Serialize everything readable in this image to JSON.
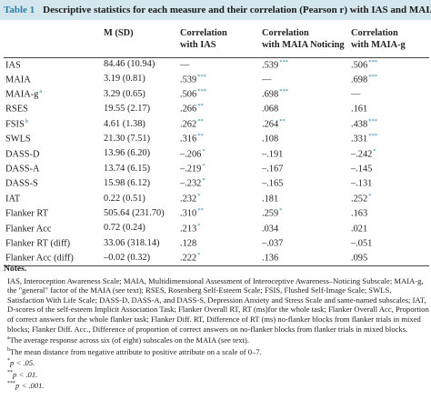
{
  "caption": {
    "label": "Table 1",
    "title": "Descriptive statistics for each measure and their correlation (Pearson r) with IAS and MAIA."
  },
  "headers": [
    "",
    "M (SD)",
    "Correlation with IAS",
    "Correlation with MAIA Noticing",
    "Correlation with MAIA-g"
  ],
  "headers_split": [
    [
      "",
      ""
    ],
    [
      "M (SD)",
      ""
    ],
    [
      "Correlation",
      "with IAS"
    ],
    [
      "Correlation",
      "with MAIA Noticing"
    ],
    [
      "Correlation",
      "with MAIA-g"
    ]
  ],
  "rows": [
    {
      "label": "IAS",
      "label_sup": "",
      "msd": "84.46 (10.94)",
      "ias": "—",
      "ias_sig": "",
      "noticing": ".539",
      "noticing_sig": "***",
      "maiag": ".506",
      "maiag_sig": "***"
    },
    {
      "label": "MAIA",
      "label_sup": "",
      "msd": "3.19 (0.81)",
      "ias": ".539",
      "ias_sig": "***",
      "noticing": "—",
      "noticing_sig": "",
      "maiag": ".698",
      "maiag_sig": "***"
    },
    {
      "label": "MAIA-g",
      "label_sup": "a",
      "msd": "3.29 (0.65)",
      "ias": ".506",
      "ias_sig": "***",
      "noticing": ".698",
      "noticing_sig": "***",
      "maiag": "—",
      "maiag_sig": ""
    },
    {
      "label": "RSES",
      "label_sup": "",
      "msd": "19.55 (2.17)",
      "ias": ".266",
      "ias_sig": "**",
      "noticing": ".068",
      "noticing_sig": "",
      "maiag": ".161",
      "maiag_sig": ""
    },
    {
      "label": "FSIS",
      "label_sup": "b",
      "msd": "4.61 (1.38)",
      "ias": ".262",
      "ias_sig": "**",
      "noticing": ".264",
      "noticing_sig": "**",
      "maiag": ".438",
      "maiag_sig": "***"
    },
    {
      "label": "SWLS",
      "label_sup": "",
      "msd": "21.30 (7.51)",
      "ias": ".316",
      "ias_sig": "**",
      "noticing": ".108",
      "noticing_sig": "",
      "maiag": ".331",
      "maiag_sig": "***"
    },
    {
      "label": "DASS-D",
      "label_sup": "",
      "msd": "13.96 (6.20)",
      "ias": "–.206",
      "ias_sig": "*",
      "noticing": "–.191",
      "noticing_sig": "",
      "maiag": "–.242",
      "maiag_sig": "*"
    },
    {
      "label": "DASS-A",
      "label_sup": "",
      "msd": "13.74 (6.15)",
      "ias": "–.219",
      "ias_sig": "*",
      "noticing": "–.167",
      "noticing_sig": "",
      "maiag": "–.145",
      "maiag_sig": ""
    },
    {
      "label": "DASS-S",
      "label_sup": "",
      "msd": "15.98 (6.12)",
      "ias": "–.232",
      "ias_sig": "*",
      "noticing": "–.165",
      "noticing_sig": "",
      "maiag": "–.131",
      "maiag_sig": ""
    },
    {
      "label": "IAT",
      "label_sup": "",
      "msd": "0.22 (0.51)",
      "ias": ".232",
      "ias_sig": "*",
      "noticing": ".181",
      "noticing_sig": "",
      "maiag": ".252",
      "maiag_sig": "*"
    },
    {
      "label": "Flanker RT",
      "label_sup": "",
      "msd": "505.64 (231.70)",
      "ias": ".310",
      "ias_sig": "**",
      "noticing": ".259",
      "noticing_sig": "*",
      "maiag": ".163",
      "maiag_sig": ""
    },
    {
      "label": "Flanker Acc",
      "label_sup": "",
      "msd": "0.72 (0.24)",
      "ias": ".213",
      "ias_sig": "*",
      "noticing": ".034",
      "noticing_sig": "",
      "maiag": ".021",
      "maiag_sig": ""
    },
    {
      "label": "Flanker RT (diff)",
      "label_sup": "",
      "msd": "33.06 (318.14)",
      "ias": ".128",
      "ias_sig": "",
      "noticing": "–.037",
      "noticing_sig": "",
      "maiag": "–.051",
      "maiag_sig": ""
    },
    {
      "label": "Flanker Acc (diff)",
      "label_sup": "",
      "msd": "–0.02 (0.32)",
      "ias": ".222",
      "ias_sig": "*",
      "noticing": ".136",
      "noticing_sig": "",
      "maiag": ".095",
      "maiag_sig": ""
    }
  ],
  "notes": {
    "heading": "Notes.",
    "abbreviations": "IAS, Interoception Awareness Scale; MAIA, Multidimensional Assessment of Interoceptive Awareness–Noticing Subscale; MAIA-g, the \"general\" factor of the MAIA (see text); RSES, Rosenberg Self-Esteem Scale; FSIS, Flushed Self-Image Scale; SWLS, Satisfaction With Life Scale; DASS-D, DASS-A, and DASS-S, Depression Anxiety and Stress Scale and same-named subscales; IAT, D-scores of the self-esteem Implicit Association Task; Flanker Overall RT, RT (ms)for the whole task; Flanker Overall Acc, Proportion of correct answers for the whole flanker task; Flanker Diff. RT, Difference of RT (ms) no-flanker blocks from flanker trials in mixed blocks; Flanker Diff. Acc., Difference of proportion of correct answers on no-flanker blocks from flanker trials in mixed blocks.",
    "a_mark": "a",
    "a_text": "The average response across six (of eight) subscales on the MAIA (see text).",
    "b_mark": "b",
    "b_text": "The mean distance from negative attribute to positive attribute on a scale of 0–7.",
    "p1_mark": "*",
    "p1_text": "p < .05.",
    "p2_mark": "**",
    "p2_text": "p < .01.",
    "p3_mark": "***",
    "p3_text": "p < .001."
  }
}
